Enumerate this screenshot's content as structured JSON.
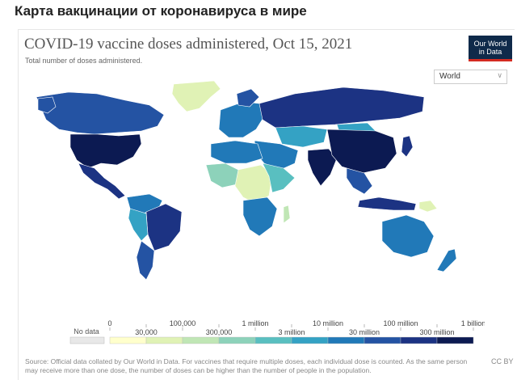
{
  "page": {
    "heading": "Карта вакцинации от коронавируса в мире"
  },
  "chart": {
    "title": "COVID-19 vaccine doses administered, Oct 15, 2021",
    "subtitle": "Total number of doses administered.",
    "logo_line1": "Our World",
    "logo_line2": "in Data",
    "region_selector": {
      "selected": "World"
    },
    "source_note": "Source: Official data collated by Our World in Data. For vaccines that require multiple doses, each individual dose is counted. As the same person may receive more than one dose, the number of doses can be higher than the number of people in the population.",
    "license": "CC BY"
  },
  "legend": {
    "no_data_label": "No data",
    "top_labels": [
      "0",
      "100,000",
      "1 million",
      "10 million",
      "100 million",
      "1 billion"
    ],
    "bottom_labels": [
      "30,000",
      "300,000",
      "3 million",
      "30 million",
      "300 million",
      "3 billion"
    ],
    "colors": [
      "#ffffcc",
      "#e0f2b5",
      "#c0e6b5",
      "#8dd2ba",
      "#59bfc0",
      "#34a2c4",
      "#2179b8",
      "#2453a3",
      "#1c3383",
      "#0c1a52"
    ],
    "no_data_color": "#e8e8e8"
  }
}
